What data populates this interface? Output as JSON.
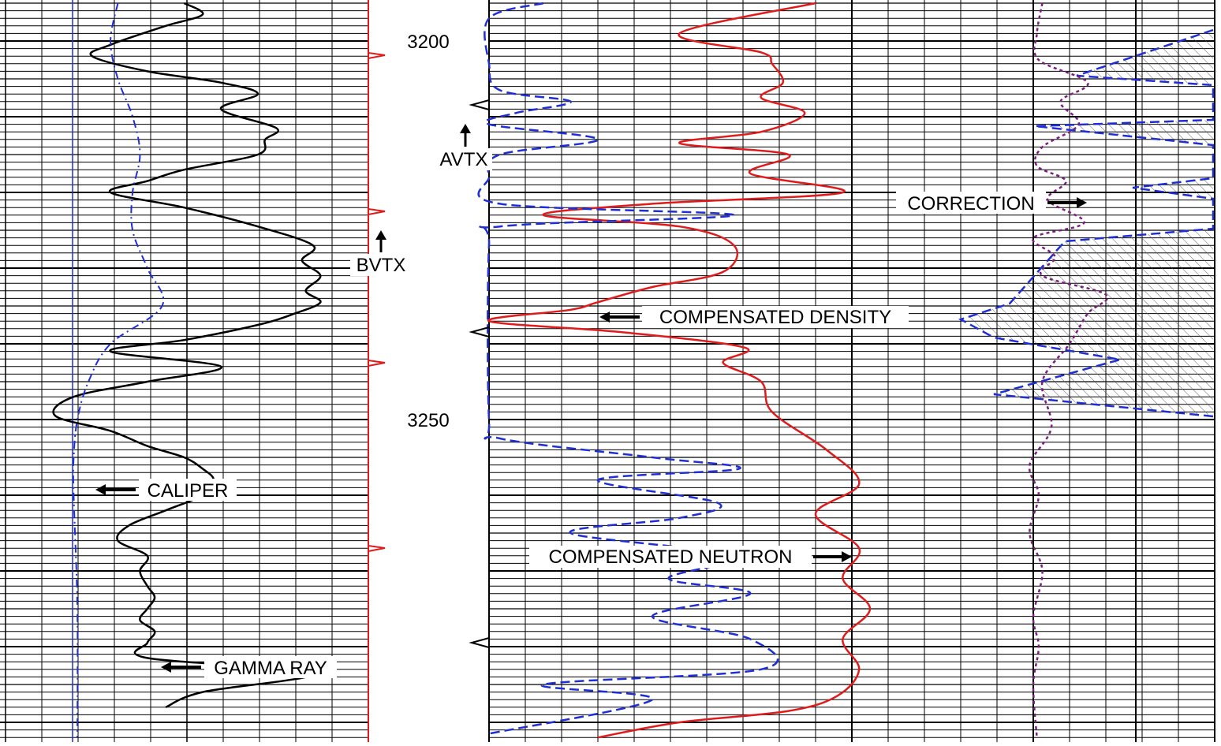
{
  "colors": {
    "grid": "#000000",
    "gamma_ray": "#000000",
    "caliper": "#1f2fd6",
    "density": "#e01b1b",
    "neutron": "#1f2fd6",
    "correction": "#7b1f7f",
    "track1_edge": "#e01b1b",
    "bit_line": "#1f2fd6"
  },
  "chart_data": {
    "type": "line",
    "title": "",
    "depth_labels": [
      "3200",
      "3250"
    ],
    "depth_range": [
      3195,
      3292
    ],
    "annotations": {
      "gamma_ray": "GAMMA RAY",
      "caliper": "CALIPER",
      "density": "COMPENSATED DENSITY",
      "neutron": "COMPENSATED NEUTRON",
      "correction": "CORRECTION",
      "avtx": "AVTX",
      "bvtx": "BVTX"
    },
    "series": [
      {
        "name": "GAMMA RAY",
        "track": 1,
        "style": "solid",
        "x": [
          0.5,
          0.55,
          0.45,
          0.3,
          0.25,
          0.4,
          0.6,
          0.7,
          0.6,
          0.75,
          0.72,
          0.7,
          0.5,
          0.4,
          0.3,
          0.5,
          0.7,
          0.85,
          0.82,
          0.87,
          0.83,
          0.87,
          0.8,
          0.7,
          0.5,
          0.3,
          0.6,
          0.4,
          0.2,
          0.15,
          0.3,
          0.4,
          0.5,
          0.55,
          0.58,
          0.55,
          0.45,
          0.35,
          0.32,
          0.4,
          0.38,
          0.4,
          0.42,
          0.4,
          0.38,
          0.42,
          0.4,
          0.4,
          0.85,
          0.55,
          0.45
        ],
        "depth": [
          3195.0,
          3196.5,
          3198.0,
          3200.5,
          3202.0,
          3204.0,
          3205.5,
          3207.0,
          3209.0,
          3211.5,
          3213.0,
          3215.0,
          3217.0,
          3218.5,
          3220.0,
          3222.0,
          3224.5,
          3227.0,
          3229.0,
          3231.0,
          3233.0,
          3234.5,
          3236.0,
          3237.5,
          3239.5,
          3241.0,
          3243.0,
          3245.0,
          3247.0,
          3249.5,
          3251.5,
          3253.5,
          3255.0,
          3256.5,
          3258.0,
          3260.0,
          3262.0,
          3264.0,
          3266.0,
          3268.0,
          3270.0,
          3272.0,
          3273.5,
          3275.0,
          3276.5,
          3278.0,
          3279.5,
          3281.5,
          3283.5,
          3286.0,
          3288.0
        ]
      },
      {
        "name": "CALIPER",
        "track": 1,
        "style": "dash-dot",
        "x": [
          0.32,
          0.3,
          0.32,
          0.36,
          0.38,
          0.36,
          0.36,
          0.4,
          0.44,
          0.3,
          0.24,
          0.21,
          0.2,
          0.2,
          0.21,
          0.21
        ],
        "depth": [
          3195.0,
          3200.0,
          3205.0,
          3210.0,
          3215.0,
          3220.0,
          3225.0,
          3230.0,
          3235.0,
          3240.0,
          3245.0,
          3250.0,
          3255.0,
          3260.0,
          3275.0,
          3292.0
        ]
      },
      {
        "name": "COMPENSATED DENSITY",
        "track": 2,
        "style": "solid",
        "x": [
          0.6,
          0.35,
          0.5,
          0.52,
          0.54,
          0.5,
          0.58,
          0.5,
          0.35,
          0.55,
          0.48,
          0.65,
          0.3,
          0.1,
          0.35,
          0.45,
          0.43,
          0.3,
          0.2,
          0.15,
          0.0,
          0.25,
          0.47,
          0.43,
          0.5,
          0.52,
          0.62,
          0.68,
          0.6,
          0.68,
          0.65,
          0.7,
          0.65,
          0.68,
          0.64,
          0.55,
          0.35,
          0.2
        ],
        "depth": [
          3195.0,
          3199.0,
          3201.5,
          3203.0,
          3205.5,
          3207.5,
          3209.5,
          3212.0,
          3213.5,
          3215.0,
          3217.5,
          3220.0,
          3221.5,
          3223.0,
          3224.5,
          3227.0,
          3230.5,
          3232.5,
          3234.5,
          3235.5,
          3237.0,
          3238.5,
          3240.5,
          3242.5,
          3245.0,
          3249.0,
          3254.0,
          3258.5,
          3262.5,
          3267.0,
          3271.0,
          3275.0,
          3279.0,
          3283.0,
          3286.5,
          3288.5,
          3290.0,
          3292.0
        ]
      },
      {
        "name": "COMPENSATED NEUTRON",
        "track": 2,
        "style": "dashed",
        "x": [
          0.1,
          0.0,
          0.0,
          0.02,
          0.15,
          0.05,
          0.0,
          0.2,
          0.02,
          0.0,
          0.02,
          0.45,
          0.02,
          0.0,
          0.0,
          0.02,
          0.3,
          0.46,
          0.2,
          0.42,
          0.35,
          0.15,
          0.45,
          0.33,
          0.48,
          0.3,
          0.48,
          0.5,
          0.1,
          0.3,
          0.0
        ],
        "depth": [
          3195.0,
          3197.0,
          3203.0,
          3206.5,
          3208.0,
          3209.5,
          3211.0,
          3213.0,
          3215.0,
          3218.0,
          3221.5,
          3223.0,
          3224.5,
          3227.0,
          3250.0,
          3252.5,
          3255.0,
          3256.5,
          3258.0,
          3261.0,
          3263.0,
          3265.0,
          3268.0,
          3271.0,
          3273.0,
          3276.0,
          3279.0,
          3283.0,
          3285.0,
          3287.0,
          3291.5
        ]
      },
      {
        "name": "CORRECTION",
        "track": 3,
        "style": "dotted",
        "x": [
          0.05,
          0.02,
          0.03,
          0.3,
          0.15,
          0.25,
          0.05,
          0.02,
          0.18,
          0.08,
          0.28,
          0.0,
          0.12,
          0.05,
          0.4,
          0.3,
          0.2,
          0.05,
          0.1,
          -0.02,
          0.03,
          -0.02,
          0.05,
          0.0,
          0.03,
          0.0,
          0.02
        ],
        "depth": [
          3195.0,
          3199.0,
          3202.5,
          3205.5,
          3208.0,
          3211.0,
          3214.0,
          3216.5,
          3218.5,
          3221.0,
          3224.0,
          3226.0,
          3228.5,
          3231.0,
          3233.5,
          3236.0,
          3240.0,
          3245.0,
          3251.0,
          3256.0,
          3260.0,
          3265.0,
          3270.0,
          3276.0,
          3280.0,
          3285.0,
          3292.0
        ]
      }
    ]
  }
}
